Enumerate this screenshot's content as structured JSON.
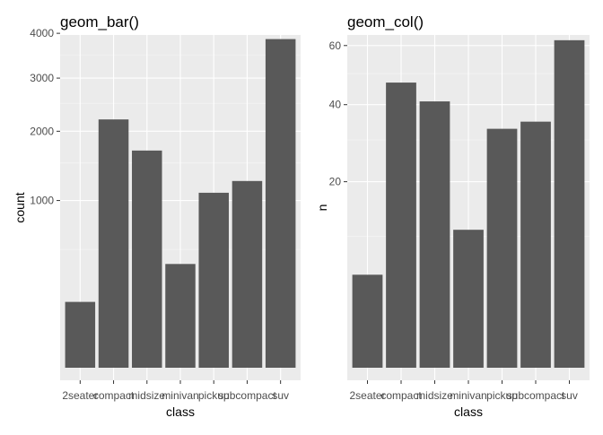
{
  "colors": {
    "panel": "#ebebeb",
    "grid_major": "#ffffff",
    "grid_minor": "#f4f4f4",
    "bar": "#595959"
  },
  "chart_data": [
    {
      "type": "bar",
      "title": "geom_bar()",
      "xlabel": "class",
      "ylabel": "count",
      "y_scale": "sqrt",
      "ylim": [
        0,
        3960
      ],
      "yticks": [
        1000,
        2000,
        3000,
        4000
      ],
      "categories": [
        "2seater",
        "compact",
        "midsize",
        "minivan",
        "pickup",
        "subcompact",
        "suv"
      ],
      "values": [
        155,
        2205,
        1687,
        385,
        1095,
        1247,
        3863
      ],
      "grid": true
    },
    {
      "type": "bar",
      "title": "geom_col()",
      "xlabel": "class",
      "ylabel": "n",
      "y_scale": "sqrt",
      "ylim": [
        0,
        64
      ],
      "yticks": [
        20,
        40,
        60
      ],
      "categories": [
        "2seater",
        "compact",
        "midsize",
        "minivan",
        "pickup",
        "subcompact",
        "suv"
      ],
      "values": [
        5,
        47,
        41,
        11,
        33,
        35,
        62
      ],
      "grid": true
    }
  ]
}
